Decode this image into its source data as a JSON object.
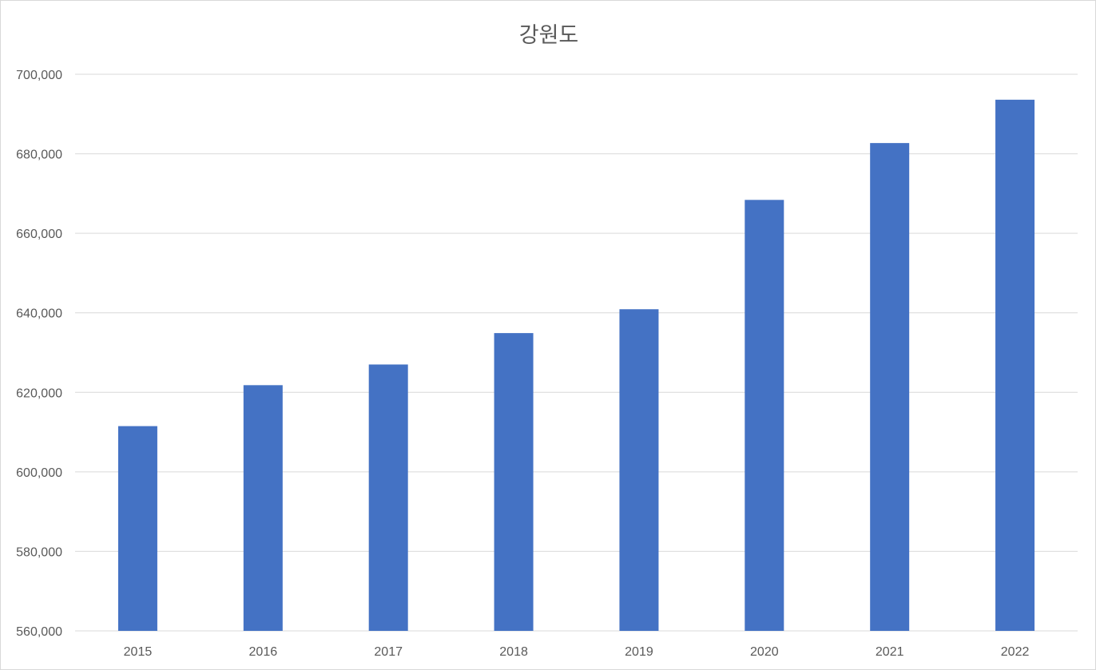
{
  "chart_data": {
    "type": "bar",
    "title": "강원도",
    "xlabel": "",
    "ylabel": "",
    "categories": [
      "2015",
      "2016",
      "2017",
      "2018",
      "2019",
      "2020",
      "2021",
      "2022"
    ],
    "series": [
      {
        "values": [
          611500,
          621800,
          627000,
          634900,
          640900,
          668400,
          682700,
          693600
        ]
      }
    ],
    "ylim": [
      560000,
      700000
    ],
    "yticks": [
      560000,
      580000,
      600000,
      620000,
      640000,
      660000,
      680000,
      700000
    ],
    "ytick_labels": [
      "560,000",
      "580,000",
      "600,000",
      "620,000",
      "640,000",
      "660,000",
      "680,000",
      "700,000"
    ],
    "grid": true,
    "legend": "none",
    "bar_color": "#4472c4"
  }
}
